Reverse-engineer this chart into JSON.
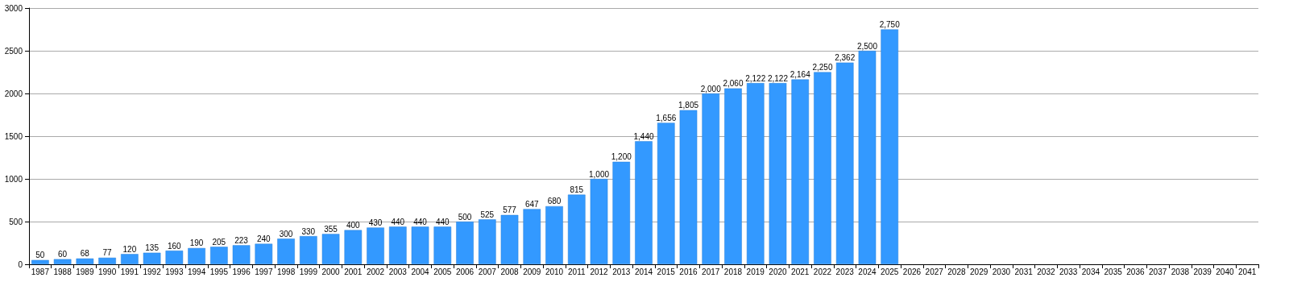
{
  "chart_data": {
    "type": "bar",
    "categories": [
      "1987",
      "1988",
      "1989",
      "1990",
      "1991",
      "1992",
      "1993",
      "1994",
      "1995",
      "1996",
      "1997",
      "1998",
      "1999",
      "2000",
      "2001",
      "2002",
      "2003",
      "2004",
      "2005",
      "2006",
      "2007",
      "2008",
      "2009",
      "2010",
      "2011",
      "2012",
      "2013",
      "2014",
      "2015",
      "2016",
      "2017",
      "2018",
      "2019",
      "2020",
      "2021",
      "2022",
      "2023",
      "2024",
      "2025",
      "2026",
      "2027",
      "2028",
      "2029",
      "2030",
      "2031",
      "2032",
      "2033",
      "2034",
      "2035",
      "2036",
      "2037",
      "2038",
      "2039",
      "2040",
      "2041"
    ],
    "values": [
      50,
      60,
      68,
      77,
      120,
      135,
      160,
      190,
      205,
      223,
      240,
      300,
      330,
      355,
      400,
      430,
      440,
      440,
      440,
      500,
      525,
      577,
      647,
      680,
      815,
      1000,
      1200,
      1440,
      1656,
      1805,
      2000,
      2060,
      2122,
      2122,
      2164,
      2250,
      2362,
      2500,
      2750,
      null,
      null,
      null,
      null,
      null,
      null,
      null,
      null,
      null,
      null,
      null,
      null,
      null,
      null,
      null,
      null
    ],
    "value_labels": [
      "50",
      "60",
      "68",
      "77",
      "120",
      "135",
      "160",
      "190",
      "205",
      "223",
      "240",
      "300",
      "330",
      "355",
      "400",
      "430",
      "440",
      "440",
      "440",
      "500",
      "525",
      "577",
      "647",
      "680",
      "815",
      "1,000",
      "1,200",
      "1,440",
      "1,656",
      "1,805",
      "2,000",
      "2,060",
      "2,122",
      "2,122",
      "2,164",
      "2,250",
      "2,362",
      "2,500",
      "2,750",
      null,
      null,
      null,
      null,
      null,
      null,
      null,
      null,
      null,
      null,
      null,
      null,
      null,
      null,
      null,
      null
    ],
    "color": "#3399ff",
    "ylim": [
      0,
      3000
    ],
    "yticks": [
      0,
      500,
      1000,
      1500,
      2000,
      2500,
      3000
    ],
    "grid": "y"
  }
}
